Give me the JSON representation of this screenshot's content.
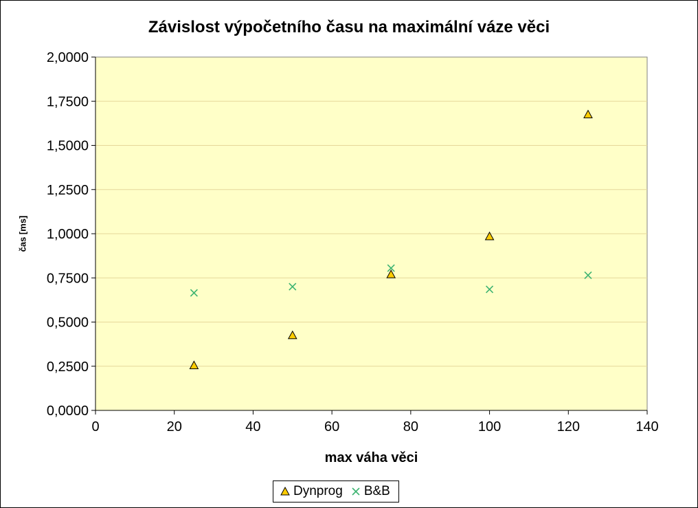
{
  "chart_data": {
    "type": "scatter",
    "title": "Závislost výpočetního času na maximální váze věci",
    "xlabel": "max váha věci",
    "ylabel": "čas [ms]",
    "xlim": [
      0,
      140
    ],
    "ylim": [
      0,
      2
    ],
    "x_ticks": [
      "0",
      "20",
      "40",
      "60",
      "80",
      "100",
      "120",
      "140"
    ],
    "y_ticks": [
      "0,0000",
      "0,2500",
      "0,5000",
      "0,7500",
      "1,0000",
      "1,2500",
      "1,5000",
      "1,7500",
      "2,0000"
    ],
    "grid": "horizontal",
    "legend_position": "bottom",
    "plot_background": "#ffffc8",
    "series": [
      {
        "name": "Dynprog",
        "marker": "triangle",
        "color": "#ffcc00",
        "x": [
          25,
          50,
          75,
          100,
          125
        ],
        "y": [
          0.255,
          0.425,
          0.77,
          0.985,
          1.675
        ]
      },
      {
        "name": "B&B",
        "marker": "x",
        "color": "#3cb371",
        "x": [
          25,
          50,
          75,
          100,
          125
        ],
        "y": [
          0.665,
          0.7,
          0.805,
          0.685,
          0.765
        ]
      }
    ]
  }
}
